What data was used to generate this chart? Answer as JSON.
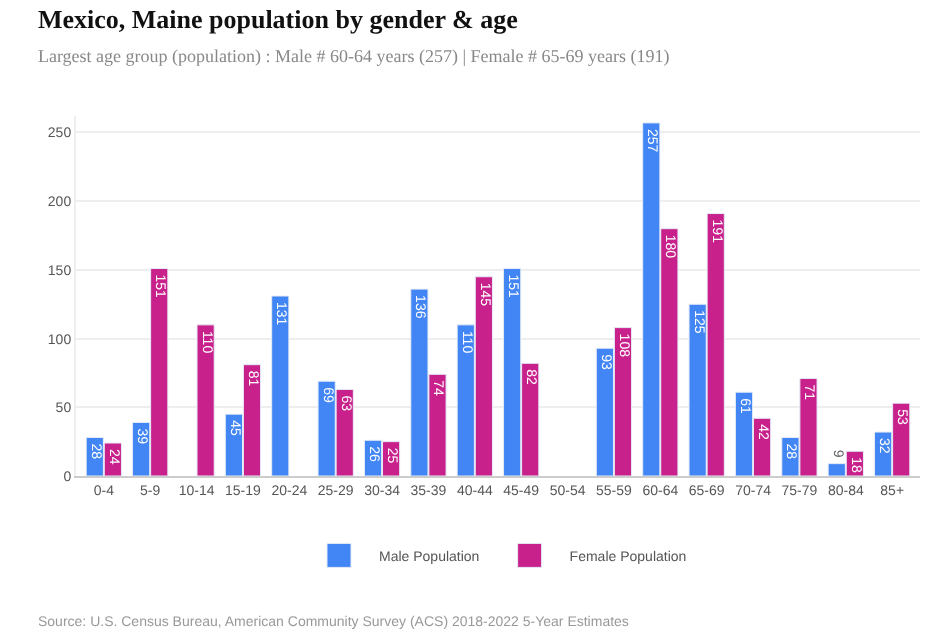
{
  "chart_data": {
    "type": "bar",
    "title": "Mexico, Maine population by gender & age",
    "subtitle": "Largest age group (population) : Male # 60-64 years (257) | Female # 65-69 years (191)",
    "categories": [
      "0-4",
      "5-9",
      "10-14",
      "15-19",
      "20-24",
      "25-29",
      "30-34",
      "35-39",
      "40-44",
      "45-49",
      "50-54",
      "55-59",
      "60-64",
      "65-69",
      "70-74",
      "75-79",
      "80-84",
      "85+"
    ],
    "series": [
      {
        "name": "Male Population",
        "color": "#4285f4",
        "values": [
          28,
          39,
          null,
          45,
          131,
          69,
          26,
          136,
          110,
          151,
          null,
          93,
          257,
          125,
          61,
          28,
          9,
          32
        ],
        "value_labels": [
          "28",
          "39",
          null,
          "45",
          "131",
          "69",
          "26",
          "136",
          "110",
          "151",
          null,
          "93",
          "257",
          "125",
          "61",
          "28",
          "9",
          "32"
        ]
      },
      {
        "name": "Female Population",
        "color": "#c8218c",
        "values": [
          24,
          151,
          110,
          81,
          null,
          63,
          25,
          74,
          145,
          82,
          null,
          108,
          180,
          191,
          42,
          71,
          18,
          53
        ],
        "value_labels": [
          "24",
          "151",
          "110",
          "81",
          null,
          "63",
          "25",
          "74",
          "145",
          "82",
          null,
          "108",
          "180",
          "191",
          "42",
          "71",
          "18",
          "53"
        ]
      }
    ],
    "ylim": [
      0,
      262
    ],
    "yticks": [
      0,
      50,
      100,
      150,
      200,
      250
    ],
    "grid": "y",
    "legend": "bottom",
    "annotations": [
      "Source: U.S. Census Bureau, American Community Survey (ACS) 2018-2022 5-Year Estimates"
    ]
  }
}
